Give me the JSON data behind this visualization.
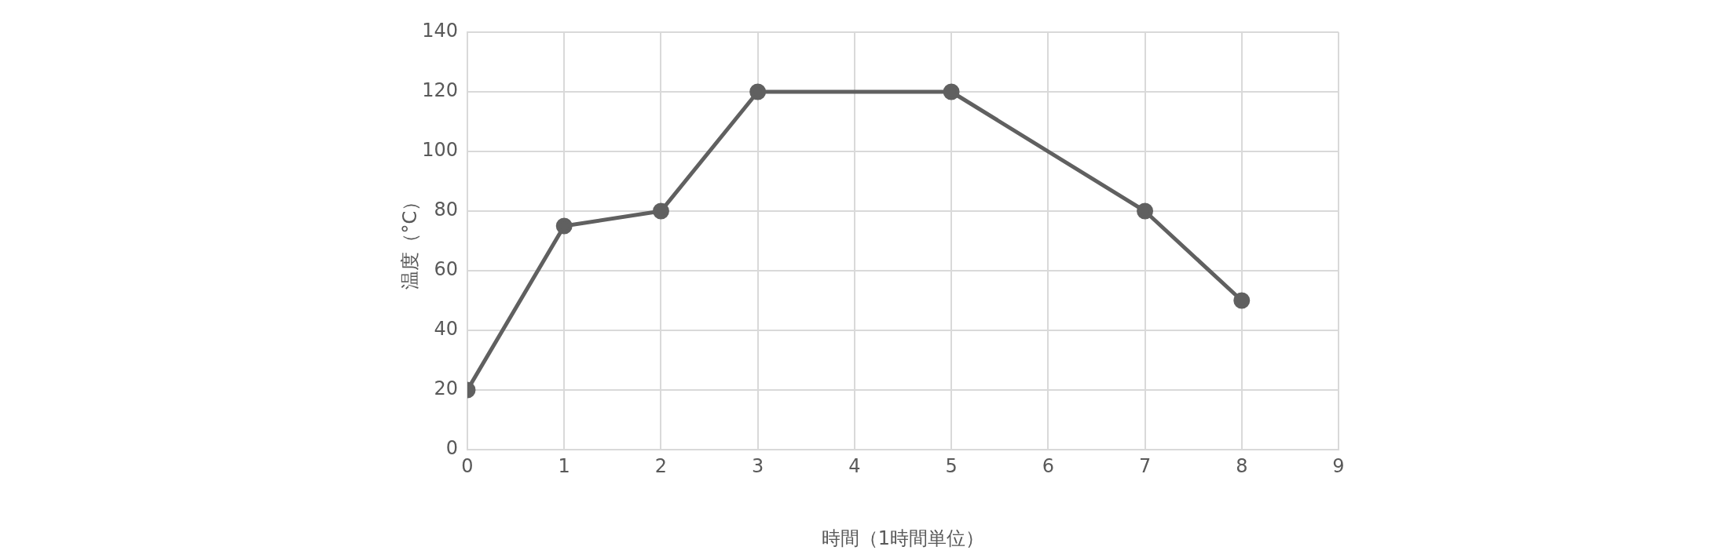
{
  "chart_data": {
    "type": "line",
    "xlabel": "時間（1時間単位）",
    "ylabel": "温度（°C）",
    "x": [
      0,
      1,
      2,
      3,
      5,
      7,
      8
    ],
    "series": [
      {
        "color": "#606060",
        "values": [
          20,
          75,
          80,
          120,
          120,
          80,
          50
        ]
      }
    ],
    "xlim": [
      0,
      9
    ],
    "xticks": [
      0,
      1,
      2,
      3,
      4,
      5,
      6,
      7,
      8,
      9
    ],
    "ylim": [
      0,
      140
    ],
    "yticks": [
      0,
      20,
      40,
      60,
      80,
      100,
      120,
      140
    ],
    "grid": true,
    "legend": false,
    "marker": "circle",
    "line_style": "solid"
  }
}
